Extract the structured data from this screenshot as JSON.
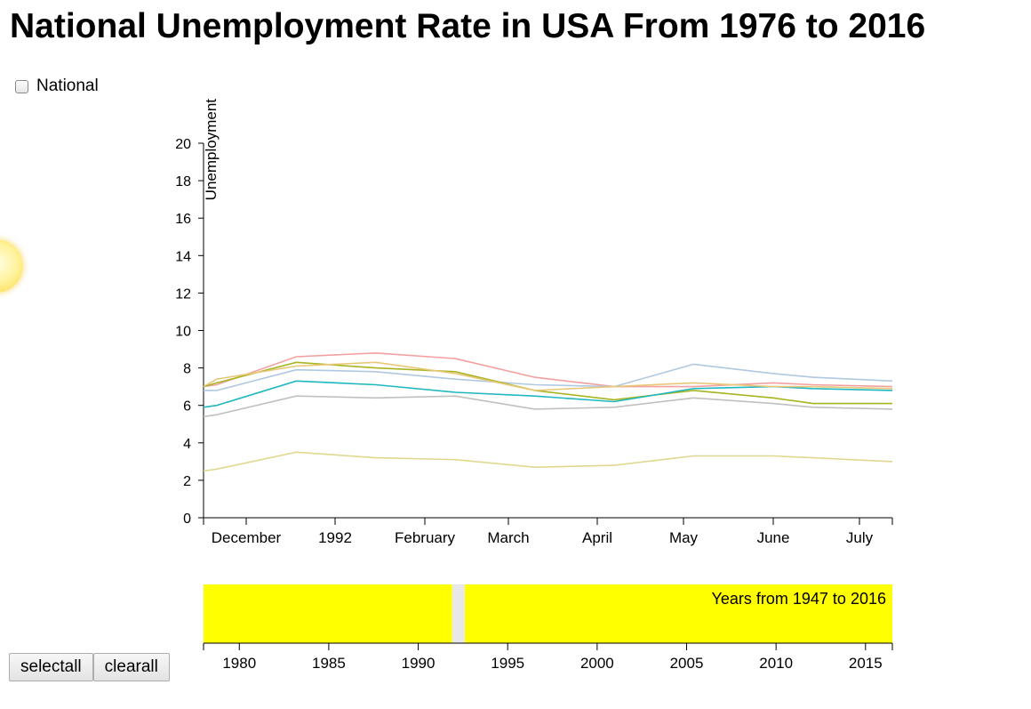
{
  "title": "National Unemployment Rate in USA From 1976 to 2016",
  "national_checkbox": {
    "label": "National",
    "checked": false
  },
  "buttons": {
    "selectall": "selectall",
    "clearall": "clearall"
  },
  "colors": {
    "selection": "#ffff00",
    "brush_gap": "#e8e8e8",
    "series": [
      "#f4a0a0",
      "#b0c8e0",
      "#c0c0c0",
      "#a8b420",
      "#20b8c0",
      "#e0d890",
      "#e8c878"
    ]
  },
  "chart_data": [
    {
      "type": "line",
      "ylabel": "Unemployment",
      "ylim": [
        0,
        20
      ],
      "yticks": [
        0,
        2,
        4,
        6,
        8,
        10,
        12,
        14,
        16,
        18,
        20
      ],
      "x_tick_labels": [
        "December",
        "1992",
        "February",
        "March",
        "April",
        "May",
        "June",
        "July"
      ],
      "x_domain": [
        1990.5,
        2016.5
      ],
      "x": [
        1990.5,
        1991,
        1994,
        1997,
        2000,
        2003,
        2006,
        2009,
        2012,
        2013.5,
        2016.5
      ],
      "series": [
        {
          "values": [
            7.0,
            7.1,
            8.6,
            8.8,
            8.5,
            7.5,
            7.0,
            7.0,
            7.2,
            7.1,
            7.0
          ]
        },
        {
          "values": [
            6.8,
            6.8,
            7.9,
            7.8,
            7.4,
            7.1,
            7.0,
            8.2,
            7.7,
            7.5,
            7.3
          ]
        },
        {
          "values": [
            5.4,
            5.5,
            6.5,
            6.4,
            6.5,
            5.8,
            5.9,
            6.4,
            6.1,
            5.9,
            5.8
          ]
        },
        {
          "values": [
            7.0,
            7.2,
            8.3,
            8.0,
            7.8,
            6.8,
            6.3,
            6.8,
            6.4,
            6.1,
            6.1
          ]
        },
        {
          "values": [
            5.9,
            6.0,
            7.3,
            7.1,
            6.7,
            6.5,
            6.2,
            6.9,
            7.0,
            6.9,
            6.8
          ]
        },
        {
          "values": [
            2.5,
            2.6,
            3.5,
            3.2,
            3.1,
            2.7,
            2.8,
            3.3,
            3.3,
            3.2,
            3.0
          ]
        },
        {
          "values": [
            7.0,
            7.4,
            8.1,
            8.3,
            7.7,
            6.8,
            7.0,
            7.2,
            7.0,
            7.0,
            6.9
          ]
        }
      ]
    },
    {
      "type": "brush",
      "annotation": "Years from 1947 to 2016",
      "xlim": [
        1978,
        2016.5
      ],
      "x_ticks": [
        1980,
        1985,
        1990,
        1995,
        2000,
        2005,
        2010,
        2015
      ],
      "selections": [
        [
          1978,
          1991.9
        ],
        [
          1992.6,
          2016.5
        ]
      ]
    }
  ]
}
